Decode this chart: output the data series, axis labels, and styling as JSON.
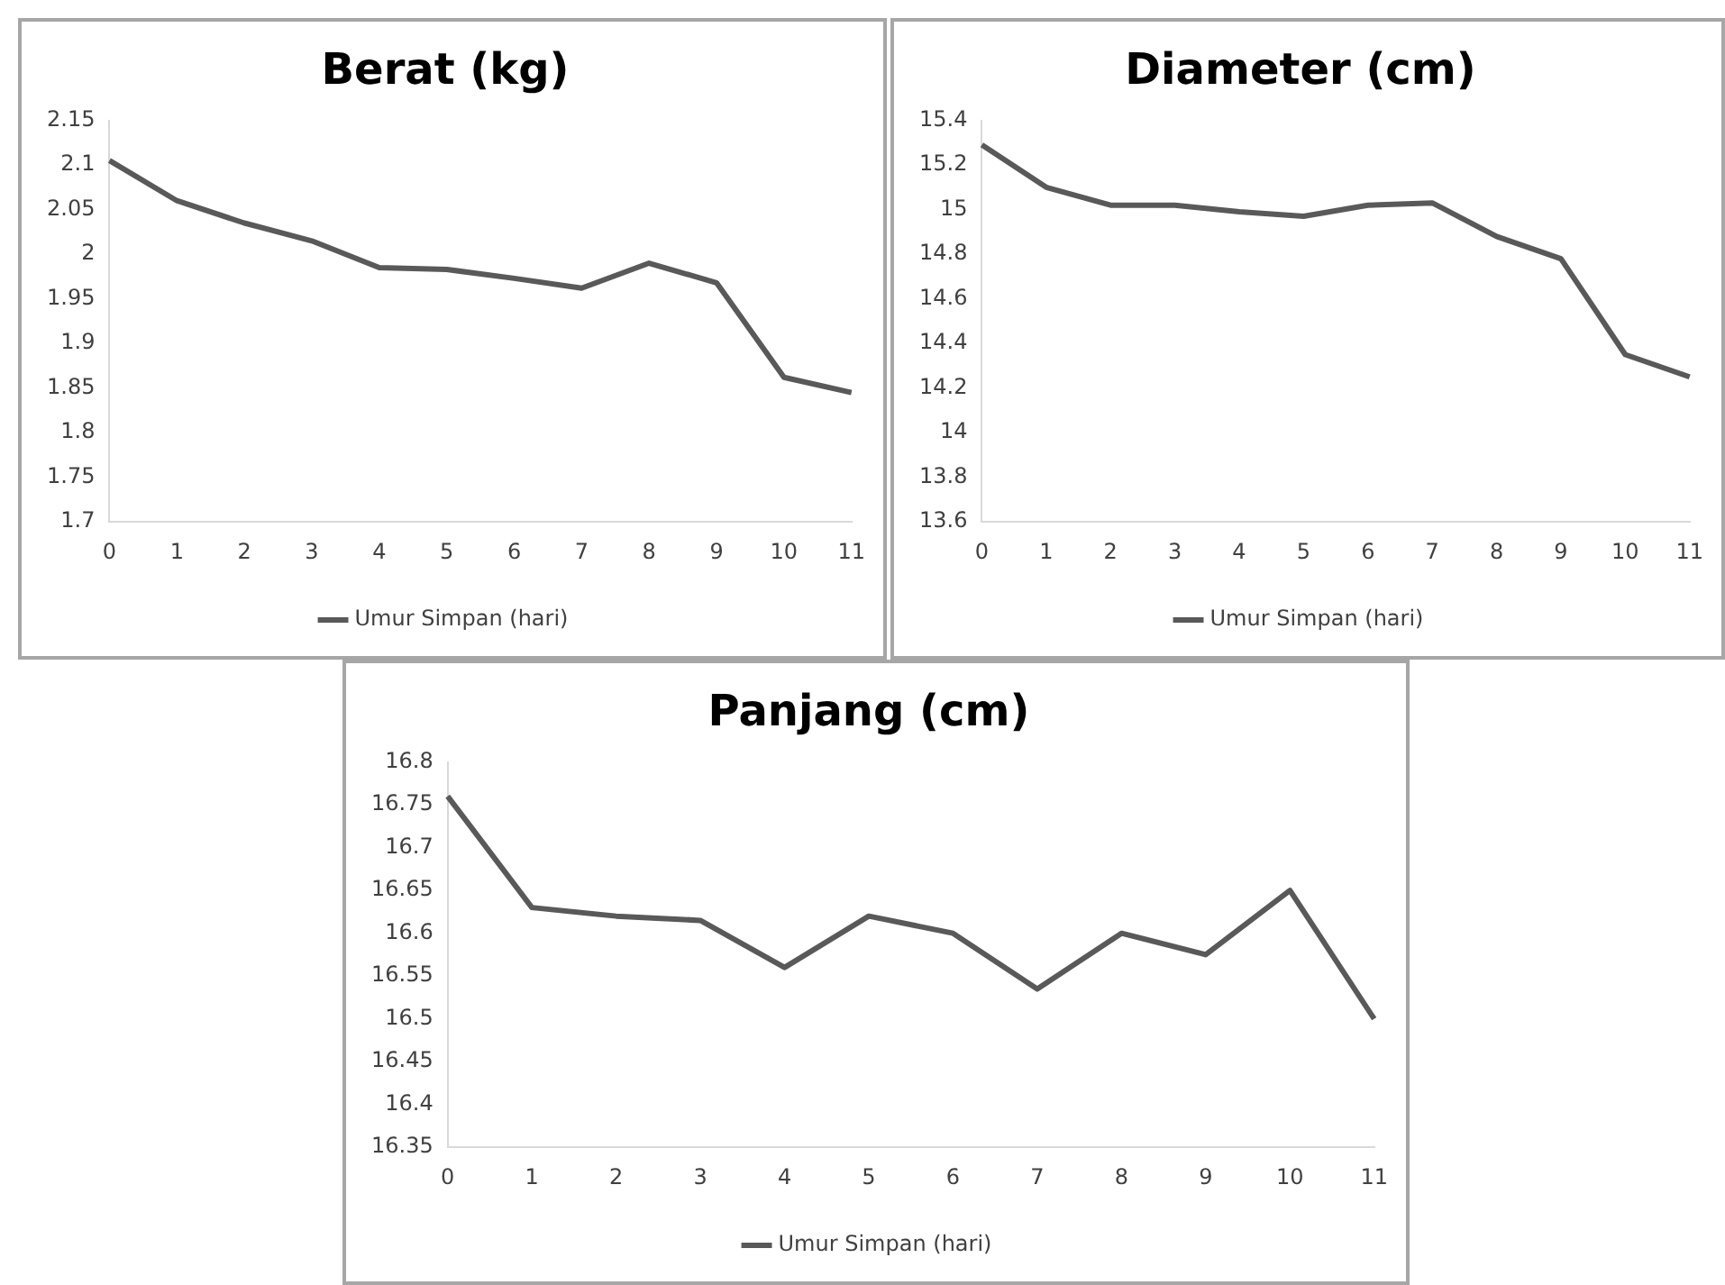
{
  "chart_data": [
    {
      "type": "line",
      "title": "Berat (kg)",
      "categories": [
        "0",
        "1",
        "2",
        "3",
        "4",
        "5",
        "6",
        "7",
        "8",
        "9",
        "10",
        "11"
      ],
      "series": [
        {
          "name": "Umur Simpan (hari)",
          "color": "#595959",
          "values": [
            2.105,
            2.06,
            2.035,
            2.015,
            1.985,
            1.983,
            1.973,
            1.962,
            1.99,
            1.968,
            1.862,
            1.845
          ]
        }
      ],
      "ylim": [
        1.7,
        2.15
      ],
      "yticks": [
        1.7,
        1.75,
        1.8,
        1.85,
        1.9,
        1.95,
        2,
        2.05,
        2.1,
        2.15
      ],
      "grid": false,
      "legend": "bottom",
      "marker": "none",
      "line_style": "solid"
    },
    {
      "type": "line",
      "title": "Diameter (cm)",
      "categories": [
        "0",
        "1",
        "2",
        "3",
        "4",
        "5",
        "6",
        "7",
        "8",
        "9",
        "10",
        "11"
      ],
      "series": [
        {
          "name": "Umur Simpan (hari)",
          "color": "#595959",
          "values": [
            15.29,
            15.1,
            15.02,
            15.02,
            14.99,
            14.97,
            15.02,
            15.03,
            14.88,
            14.78,
            14.35,
            14.25
          ]
        }
      ],
      "ylim": [
        13.6,
        15.4
      ],
      "yticks": [
        13.6,
        13.8,
        14,
        14.2,
        14.4,
        14.6,
        14.8,
        15,
        15.2,
        15.4
      ],
      "grid": false,
      "legend": "bottom",
      "marker": "none",
      "line_style": "solid"
    },
    {
      "type": "line",
      "title": "Panjang (cm)",
      "categories": [
        "0",
        "1",
        "2",
        "3",
        "4",
        "5",
        "6",
        "7",
        "8",
        "9",
        "10",
        "11"
      ],
      "series": [
        {
          "name": "Umur Simpan (hari)",
          "color": "#595959",
          "values": [
            16.76,
            16.63,
            16.62,
            16.615,
            16.56,
            16.62,
            16.6,
            16.535,
            16.6,
            16.575,
            16.65,
            16.5
          ]
        }
      ],
      "ylim": [
        16.35,
        16.8
      ],
      "yticks": [
        16.35,
        16.4,
        16.45,
        16.5,
        16.55,
        16.6,
        16.65,
        16.7,
        16.75,
        16.8
      ],
      "grid": false,
      "legend": "bottom",
      "marker": "none",
      "line_style": "solid"
    }
  ]
}
